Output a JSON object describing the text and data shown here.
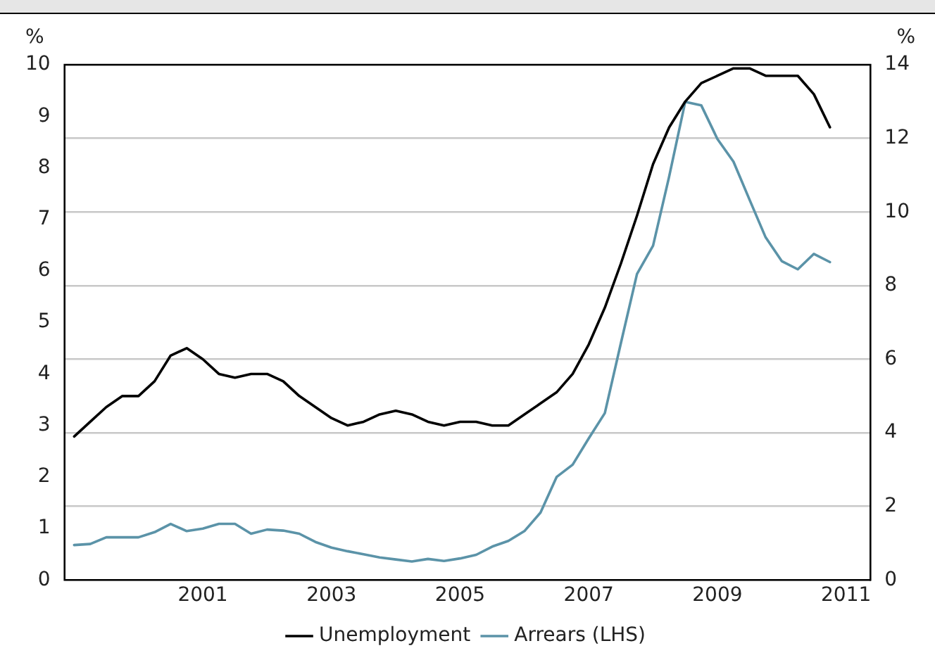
{
  "chart_data": {
    "type": "line",
    "ylabel": "%",
    "y2label": "%",
    "x": [
      1999,
      1999.25,
      1999.5,
      1999.75,
      2000,
      2000.25,
      2000.5,
      2000.75,
      2001,
      2001.25,
      2001.5,
      2001.75,
      2002,
      2002.25,
      2002.5,
      2002.75,
      2003,
      2003.25,
      2003.5,
      2003.75,
      2004,
      2004.25,
      2004.5,
      2004.75,
      2005,
      2005.25,
      2005.5,
      2005.75,
      2006,
      2006.25,
      2006.5,
      2006.75,
      2007,
      2007.25,
      2007.5,
      2007.75,
      2008,
      2008.25,
      2008.5,
      2008.75,
      2009,
      2009.25,
      2009.5,
      2009.75,
      2010,
      2010.25,
      2010.5,
      2010.75
    ],
    "series": [
      {
        "name": "Unemployment",
        "color": "#000000",
        "axis": "y2",
        "values": [
          3.9,
          4.3,
          4.7,
          5.0,
          5.0,
          5.4,
          6.1,
          6.3,
          6.0,
          5.6,
          5.5,
          5.6,
          5.6,
          5.4,
          5.0,
          4.7,
          4.4,
          4.2,
          4.3,
          4.5,
          4.6,
          4.5,
          4.3,
          4.2,
          4.3,
          4.3,
          4.2,
          4.2,
          4.5,
          4.8,
          5.1,
          5.6,
          6.4,
          7.4,
          8.6,
          9.9,
          11.3,
          12.3,
          13.0,
          13.5,
          13.7,
          13.9,
          13.9,
          13.7,
          13.7,
          13.7,
          13.2,
          12.3
        ]
      },
      {
        "name": "Arrears (LHS)",
        "color": "#5b93a8",
        "axis": "y",
        "values": [
          0.68,
          0.7,
          0.83,
          0.83,
          0.83,
          0.93,
          1.09,
          0.95,
          1.0,
          1.09,
          1.09,
          0.9,
          0.98,
          0.96,
          0.9,
          0.74,
          0.63,
          0.56,
          0.5,
          0.44,
          0.4,
          0.36,
          0.41,
          0.37,
          0.42,
          0.49,
          0.65,
          0.76,
          0.95,
          1.31,
          2.0,
          2.24,
          2.75,
          3.24,
          4.6,
          5.94,
          6.49,
          7.83,
          9.28,
          9.21,
          8.56,
          8.12,
          7.38,
          6.65,
          6.19,
          6.03,
          6.33,
          6.17
        ]
      }
    ],
    "xlim": [
      1998.85,
      2011.38
    ],
    "xticks": [
      2001,
      2003,
      2005,
      2007,
      2009,
      2011
    ],
    "ylim": [
      0,
      10
    ],
    "yticks": [
      0,
      1,
      2,
      3,
      4,
      5,
      6,
      7,
      8,
      9,
      10
    ],
    "y2lim": [
      0,
      14
    ],
    "y2ticks": [
      0,
      2,
      4,
      6,
      8,
      10,
      12,
      14
    ],
    "grid": "y2",
    "legend": "bottom",
    "marker": "none",
    "line_style": "solid"
  }
}
